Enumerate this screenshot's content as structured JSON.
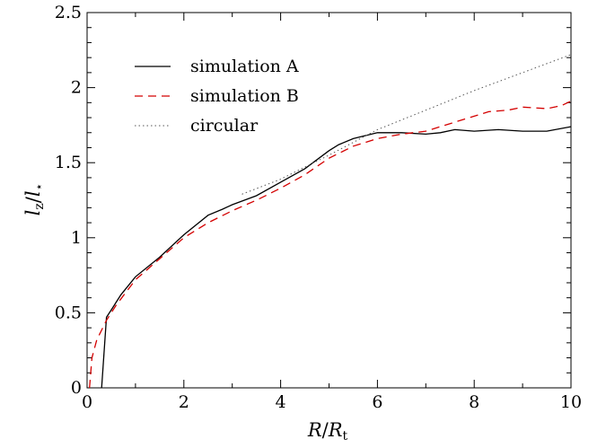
{
  "chart_data": {
    "type": "line",
    "xlabel": {
      "main": "R",
      "slash": "/",
      "denom": "R",
      "denom_sub": "t"
    },
    "ylabel": {
      "main": "l",
      "main_sub": "z",
      "slash": "/",
      "denom": "l",
      "denom_sub": "⋆"
    },
    "xlim": [
      0,
      10
    ],
    "ylim": [
      0,
      2.5
    ],
    "xticks": [
      0,
      2,
      4,
      6,
      8,
      10
    ],
    "xtick_labels": [
      "0",
      "2",
      "4",
      "6",
      "8",
      "10"
    ],
    "yticks": [
      0,
      0.5,
      1,
      1.5,
      2,
      2.5
    ],
    "ytick_labels": [
      "0",
      "0.5",
      "1",
      "1.5",
      "2",
      "2.5"
    ],
    "grid": false,
    "legend_position": "top-left",
    "series": [
      {
        "name": "simulation A",
        "style": "solid",
        "color": "#000000",
        "x": [
          0.3,
          0.4,
          0.5,
          0.7,
          1.0,
          1.5,
          2.0,
          2.5,
          2.8,
          3.0,
          3.5,
          4.0,
          4.5,
          5.0,
          5.2,
          5.5,
          6.0,
          6.5,
          7.0,
          7.3,
          7.6,
          8.0,
          8.5,
          9.0,
          9.5,
          10.0
        ],
        "y": [
          0.0,
          0.47,
          0.52,
          0.62,
          0.74,
          0.87,
          1.02,
          1.15,
          1.19,
          1.22,
          1.28,
          1.37,
          1.46,
          1.58,
          1.62,
          1.66,
          1.7,
          1.7,
          1.69,
          1.7,
          1.72,
          1.71,
          1.72,
          1.71,
          1.71,
          1.74
        ]
      },
      {
        "name": "simulation B",
        "style": "dashed",
        "color": "#d40000",
        "x": [
          0.05,
          0.1,
          0.2,
          0.4,
          0.6,
          1.0,
          1.5,
          2.0,
          2.5,
          3.0,
          3.5,
          4.0,
          4.5,
          5.0,
          5.5,
          6.0,
          6.5,
          7.0,
          7.5,
          8.0,
          8.3,
          8.7,
          9.0,
          9.5,
          9.8,
          10.0
        ],
        "y": [
          0.0,
          0.2,
          0.32,
          0.45,
          0.55,
          0.72,
          0.86,
          1.0,
          1.1,
          1.18,
          1.25,
          1.33,
          1.42,
          1.53,
          1.61,
          1.66,
          1.69,
          1.71,
          1.76,
          1.81,
          1.84,
          1.85,
          1.87,
          1.86,
          1.88,
          1.91
        ]
      },
      {
        "name": "circular",
        "style": "dotted",
        "color": "#555555",
        "x": [
          3.2,
          4.0,
          5.0,
          6.0,
          7.0,
          8.0,
          9.0,
          10.0
        ],
        "y": [
          1.29,
          1.39,
          1.55,
          1.72,
          1.85,
          1.98,
          2.1,
          2.22
        ]
      }
    ]
  }
}
